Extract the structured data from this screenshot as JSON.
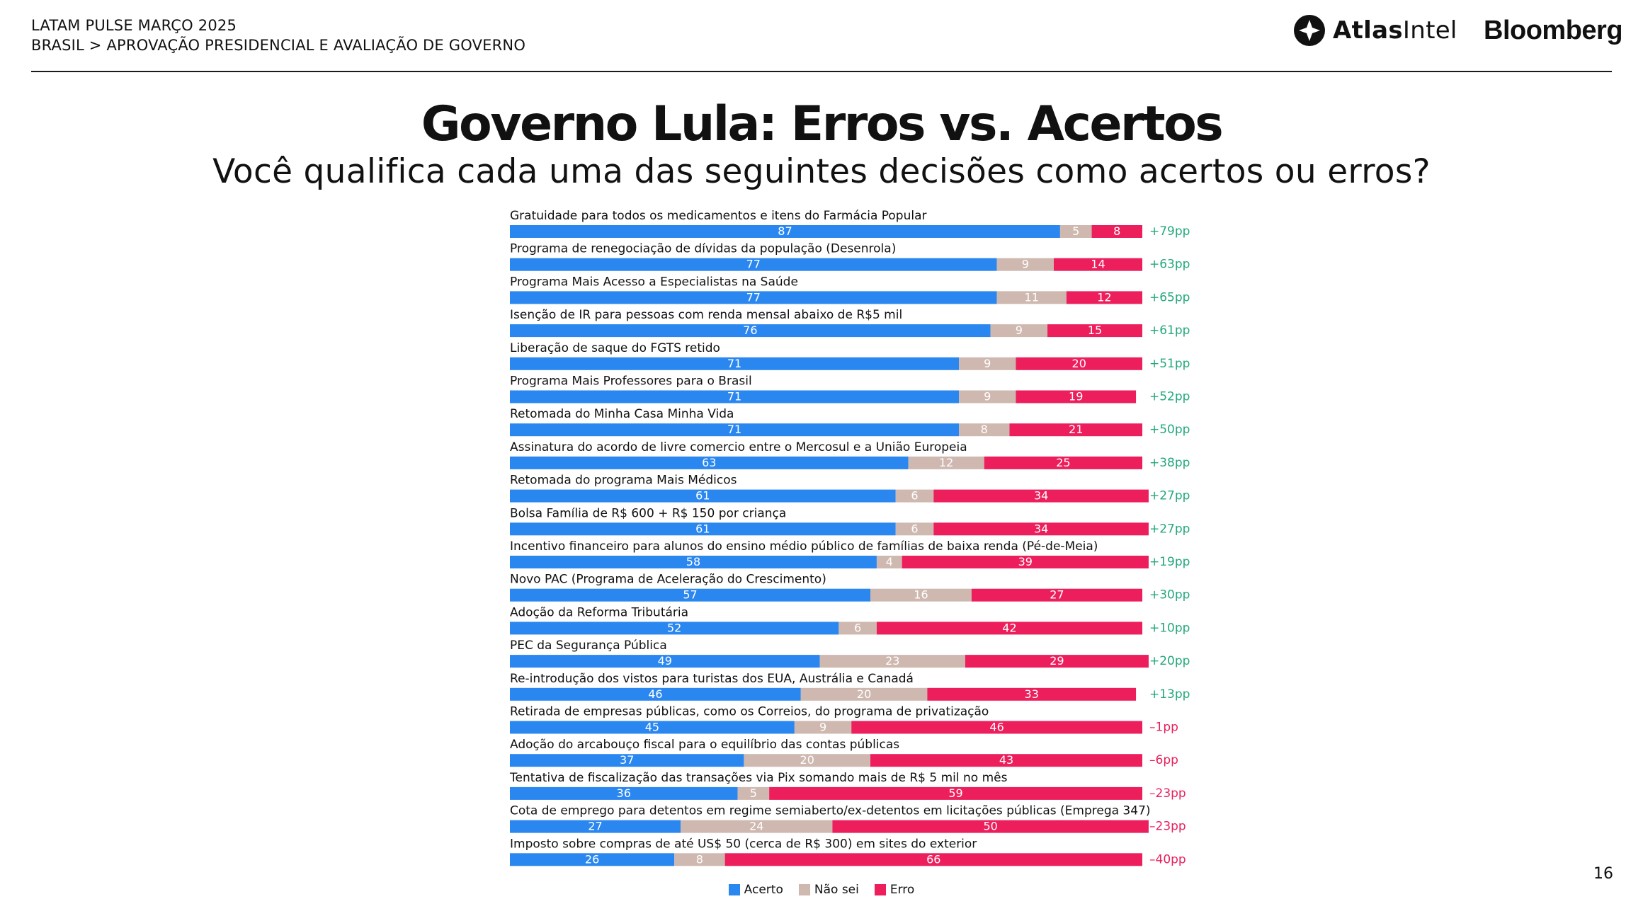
{
  "header": {
    "line1": "LATAM PULSE MARÇO 2025",
    "line2": "BRASIL > APROVAÇÃO PRESIDENCIAL E AVALIAÇÃO DE GOVERNO"
  },
  "brands": {
    "atlas_bold": "Atlas",
    "atlas_regular": "Intel",
    "bloomberg": "Bloomberg"
  },
  "icons": {
    "atlas_logo": "atlasintel-logo-icon"
  },
  "title": "Governo Lula: Erros vs. Acertos",
  "subtitle": "Você qualifica cada uma das seguintes decisões como acertos ou erros?",
  "page_number": "16",
  "colors": {
    "acerto": "#2b87f0",
    "nao_sei": "#cfb8b0",
    "erro": "#ec1f5c",
    "net_positive": "#23a87e",
    "net_negative": "#e81f5b"
  },
  "chart_data": {
    "type": "bar",
    "orientation": "horizontal",
    "stacked": true,
    "xlim": [
      0,
      100
    ],
    "legend": {
      "position": "bottom",
      "entries": [
        "Acerto",
        "Não sei",
        "Erro"
      ]
    },
    "categories": [
      "Gratuidade para todos os medicamentos e itens do Farmácia Popular",
      "Programa de renegociação de dívidas da população (Desenrola)",
      "Programa Mais Acesso a Especialistas na Saúde",
      "Isenção de IR para pessoas com renda mensal abaixo de R$5 mil",
      "Liberação de saque do FGTS retido",
      "Programa Mais Professores para o Brasil",
      "Retomada do Minha Casa Minha Vida",
      "Assinatura do acordo de livre comercio entre o Mercosul e a União Europeia",
      "Retomada do programa Mais Médicos",
      "Bolsa Família de R$ 600 + R$ 150 por criança",
      "Incentivo financeiro para alunos do ensino médio público de famílias de baixa renda (Pé-de-Meia)",
      "Novo PAC (Programa de Aceleração do Crescimento)",
      "Adoção da Reforma Tributária",
      "PEC da Segurança Pública",
      "Re-introdução dos vistos para turistas dos EUA, Austrália e Canadá",
      "Retirada de empresas públicas, como os Correios, do programa de privatização",
      "Adoção do arcabouço fiscal para o equilíbrio das contas públicas",
      "Tentativa de fiscalização das transações via Pix somando mais de R$ 5 mil no mês",
      "Cota de emprego para detentos em regime semiaberto/ex-detentos em licitações públicas (Emprega 347)",
      "Imposto sobre compras de até US$ 50 (cerca de R$ 300) em sites do exterior"
    ],
    "series": [
      {
        "name": "Acerto",
        "values": [
          87,
          77,
          77,
          76,
          71,
          71,
          71,
          63,
          61,
          61,
          58,
          57,
          52,
          49,
          46,
          45,
          37,
          36,
          27,
          26
        ]
      },
      {
        "name": "Não sei",
        "values": [
          5,
          9,
          11,
          9,
          9,
          9,
          8,
          12,
          6,
          6,
          4,
          16,
          6,
          23,
          20,
          9,
          20,
          5,
          24,
          8
        ]
      },
      {
        "name": "Erro",
        "values": [
          8,
          14,
          12,
          15,
          20,
          19,
          21,
          25,
          34,
          34,
          39,
          27,
          42,
          29,
          33,
          46,
          43,
          59,
          50,
          66
        ]
      }
    ],
    "net_labels": [
      "+79pp",
      "+63pp",
      "+65pp",
      "+61pp",
      "+51pp",
      "+52pp",
      "+50pp",
      "+38pp",
      "+27pp",
      "+27pp",
      "+19pp",
      "+30pp",
      "+10pp",
      "+20pp",
      "+13pp",
      "–1pp",
      "–6pp",
      "–23pp",
      "–23pp",
      "–40pp"
    ]
  }
}
